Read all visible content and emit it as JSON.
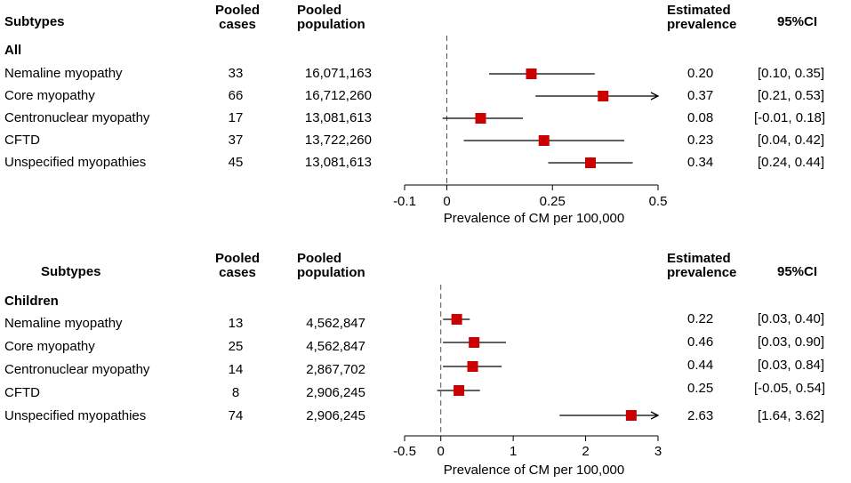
{
  "headers": {
    "subtypes": "Subtypes",
    "pooled_cases_1": "Pooled",
    "pooled_cases_2": "cases",
    "pooled_population_1": "Pooled",
    "pooled_population_2": "population",
    "estimated_prevalence_1": "Estimated",
    "estimated_prevalence_2": "prevalence",
    "ci": "95%CI"
  },
  "colors": {
    "marker": "#cc0000",
    "line": "#000000",
    "refline": "#555555"
  },
  "chart_data": [
    {
      "type": "forest",
      "group": "All",
      "xlabel": "Prevalence of CM per 100,000",
      "xlim": [
        -0.1,
        0.5
      ],
      "ticks": [
        -0.1,
        0,
        0.25,
        0.5
      ],
      "tick_labels": [
        "-0.1",
        "0",
        "0.25",
        "0.5"
      ],
      "reference_line": 0,
      "rows": [
        {
          "subtype": "Nemaline myopathy",
          "cases": "33",
          "population": "16,071,163",
          "estimate": 0.2,
          "lower": 0.1,
          "upper": 0.35,
          "estimate_label": "0.20",
          "ci_label": "[0.10, 0.35]",
          "arrow": false
        },
        {
          "subtype": "Core myopathy",
          "cases": "66",
          "population": "16,712,260",
          "estimate": 0.37,
          "lower": 0.21,
          "upper": 0.53,
          "estimate_label": "0.37",
          "ci_label": "[0.21, 0.53]",
          "arrow": true
        },
        {
          "subtype": "Centronuclear myopathy",
          "cases": "17",
          "population": "13,081,613",
          "estimate": 0.08,
          "lower": -0.01,
          "upper": 0.18,
          "estimate_label": "0.08",
          "ci_label": "[-0.01, 0.18]",
          "arrow": false
        },
        {
          "subtype": "CFTD",
          "cases": "37",
          "population": "13,722,260",
          "estimate": 0.23,
          "lower": 0.04,
          "upper": 0.42,
          "estimate_label": "0.23",
          "ci_label": "[0.04, 0.42]",
          "arrow": false
        },
        {
          "subtype": "Unspecified myopathies",
          "cases": "45",
          "population": "13,081,613",
          "estimate": 0.34,
          "lower": 0.24,
          "upper": 0.44,
          "estimate_label": "0.34",
          "ci_label": "[0.24, 0.44]",
          "arrow": false
        }
      ]
    },
    {
      "type": "forest",
      "group": "Children",
      "xlabel": "Prevalence of CM per 100,000",
      "xlim": [
        -0.5,
        3
      ],
      "ticks": [
        -0.5,
        0,
        1,
        2,
        3
      ],
      "tick_labels": [
        "-0.5",
        "0",
        "1",
        "2",
        "3"
      ],
      "reference_line": 0,
      "rows": [
        {
          "subtype": "Nemaline myopathy",
          "cases": "13",
          "population": "4,562,847",
          "estimate": 0.22,
          "lower": 0.03,
          "upper": 0.4,
          "estimate_label": "0.22",
          "ci_label": "[0.03, 0.40]",
          "arrow": false
        },
        {
          "subtype": "Core myopathy",
          "cases": "25",
          "population": "4,562,847",
          "estimate": 0.46,
          "lower": 0.03,
          "upper": 0.9,
          "estimate_label": "0.46",
          "ci_label": "[0.03, 0.90]",
          "arrow": false
        },
        {
          "subtype": "Centronuclear myopathy",
          "cases": "14",
          "population": "2,867,702",
          "estimate": 0.44,
          "lower": 0.03,
          "upper": 0.84,
          "estimate_label": "0.44",
          "ci_label": "[0.03, 0.84]",
          "arrow": false
        },
        {
          "subtype": "CFTD",
          "cases": "8",
          "population": "2,906,245",
          "estimate": 0.25,
          "lower": -0.05,
          "upper": 0.54,
          "estimate_label": "0.25",
          "ci_label": "[-0.05, 0.54]",
          "arrow": false
        },
        {
          "subtype": "Unspecified myopathies",
          "cases": "74",
          "population": "2,906,245",
          "estimate": 2.63,
          "lower": 1.64,
          "upper": 3.62,
          "estimate_label": "2.63",
          "ci_label": "[1.64, 3.62]",
          "arrow": true
        }
      ]
    }
  ]
}
